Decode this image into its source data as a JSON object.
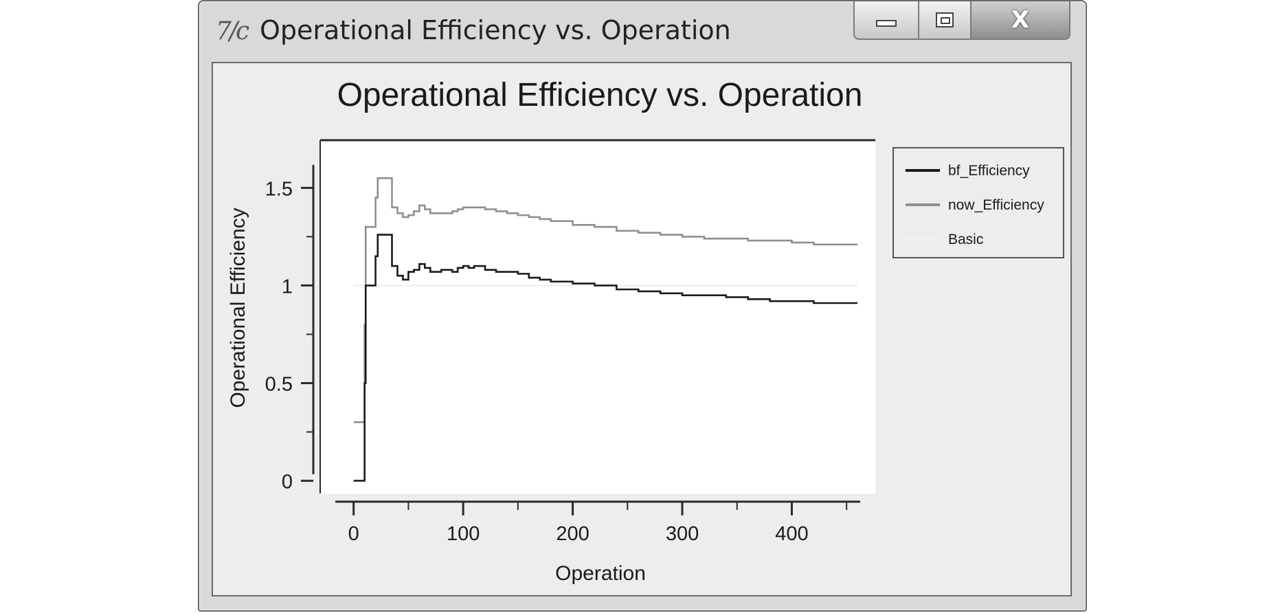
{
  "window": {
    "title": "Operational Efficiency vs. Operation",
    "icon": "tk-feather-icon",
    "controls": [
      "minimize-icon",
      "maximize-icon",
      "close-icon"
    ],
    "close_glyph": "X"
  },
  "chart_data": {
    "type": "line",
    "title": "Operational Efficiency vs. Operation",
    "xlabel": "Operation",
    "ylabel": "Operational Efficiency",
    "xlim": [
      -18,
      480
    ],
    "ylim": [
      -0.1,
      1.73
    ],
    "x_ticks": [
      0,
      100,
      200,
      300,
      400
    ],
    "y_ticks": [
      0,
      0.5,
      1,
      1.5
    ],
    "y_tick_labels": [
      "0",
      "0.5",
      "1",
      "1.5"
    ],
    "grid": false,
    "legend_position": "right",
    "series": [
      {
        "name": "bf_Efficiency",
        "color": "#1a1a1a",
        "step": true,
        "x": [
          0,
          10,
          11,
          12,
          20,
          22,
          30,
          35,
          40,
          45,
          50,
          55,
          60,
          65,
          70,
          80,
          90,
          95,
          100,
          105,
          110,
          120,
          130,
          140,
          150,
          160,
          170,
          180,
          200,
          220,
          240,
          260,
          280,
          300,
          320,
          340,
          360,
          380,
          400,
          420,
          440,
          460
        ],
        "y": [
          0,
          0.5,
          1.0,
          1.0,
          1.15,
          1.26,
          1.26,
          1.1,
          1.05,
          1.03,
          1.07,
          1.08,
          1.11,
          1.09,
          1.07,
          1.08,
          1.07,
          1.09,
          1.1,
          1.09,
          1.1,
          1.08,
          1.07,
          1.07,
          1.06,
          1.04,
          1.03,
          1.02,
          1.01,
          1.0,
          0.98,
          0.97,
          0.96,
          0.95,
          0.95,
          0.94,
          0.93,
          0.92,
          0.92,
          0.91,
          0.91,
          0.91
        ]
      },
      {
        "name": "now_Efficiency",
        "color": "#8f8f8f",
        "step": true,
        "x": [
          0,
          10,
          11,
          12,
          20,
          22,
          30,
          35,
          40,
          45,
          50,
          55,
          60,
          65,
          70,
          80,
          90,
          95,
          100,
          105,
          110,
          120,
          130,
          140,
          150,
          160,
          170,
          180,
          200,
          220,
          240,
          260,
          280,
          300,
          320,
          340,
          360,
          380,
          400,
          420,
          440,
          460
        ],
        "y": [
          0.3,
          0.8,
          1.3,
          1.3,
          1.45,
          1.55,
          1.55,
          1.4,
          1.37,
          1.35,
          1.36,
          1.38,
          1.41,
          1.39,
          1.37,
          1.37,
          1.38,
          1.39,
          1.4,
          1.4,
          1.4,
          1.39,
          1.38,
          1.37,
          1.36,
          1.35,
          1.34,
          1.33,
          1.31,
          1.3,
          1.28,
          1.27,
          1.26,
          1.25,
          1.24,
          1.24,
          1.23,
          1.23,
          1.22,
          1.21,
          1.21,
          1.21
        ]
      },
      {
        "name": "Basic",
        "color": "#f1f1f1",
        "step": false,
        "x": [
          0,
          460
        ],
        "y": [
          1,
          1
        ]
      }
    ]
  }
}
